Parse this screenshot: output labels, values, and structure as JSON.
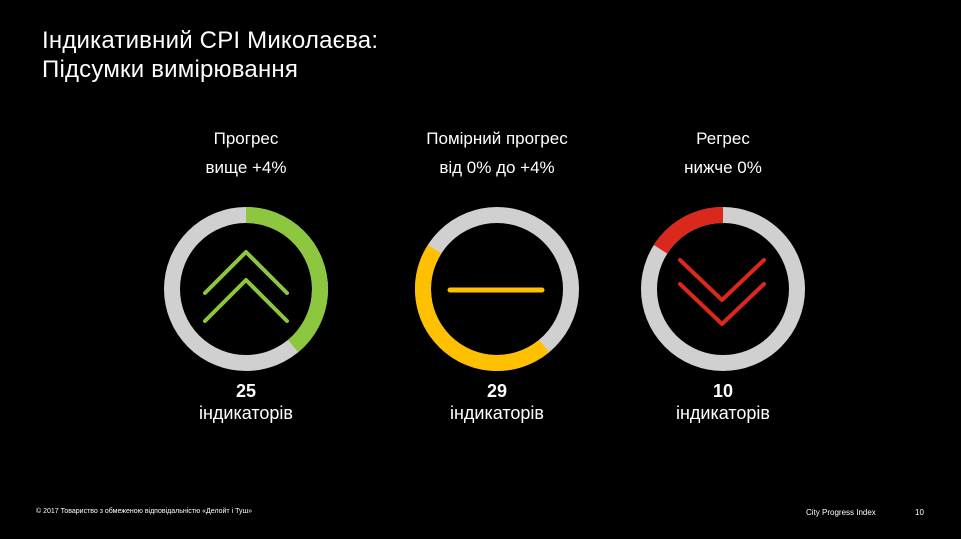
{
  "title": {
    "line1": "Індикативний CPI Миколаєва:",
    "line2": "Підсумки вимірювання"
  },
  "groups": [
    {
      "label_line1": "Прогрес",
      "label_line2": "вище +4%",
      "count": "25",
      "unit": "індикаторів",
      "share": 0.39,
      "start_fraction": 0.0,
      "color": "#8dc63f",
      "icon": "double-chevron-up-icon"
    },
    {
      "label_line1": "Помірний прогрес",
      "label_line2": "від 0% до +4%",
      "count": "29",
      "unit": "індикаторів",
      "share": 0.45,
      "start_fraction": 0.39,
      "color": "#ffc000",
      "icon": "minus-icon"
    },
    {
      "label_line1": "Регрес",
      "label_line2": "нижче 0%",
      "count": "10",
      "unit": "індикаторів",
      "share": 0.16,
      "start_fraction": 0.84,
      "color": "#da291c",
      "icon": "double-chevron-down-icon"
    }
  ],
  "ring_track_color": "#d0d0d0",
  "footer": {
    "copyright": "© 2017 Товариство з обмеженою відповідальністю «Делойт і Туш»",
    "brand": "City Progress Index",
    "page": "10"
  }
}
